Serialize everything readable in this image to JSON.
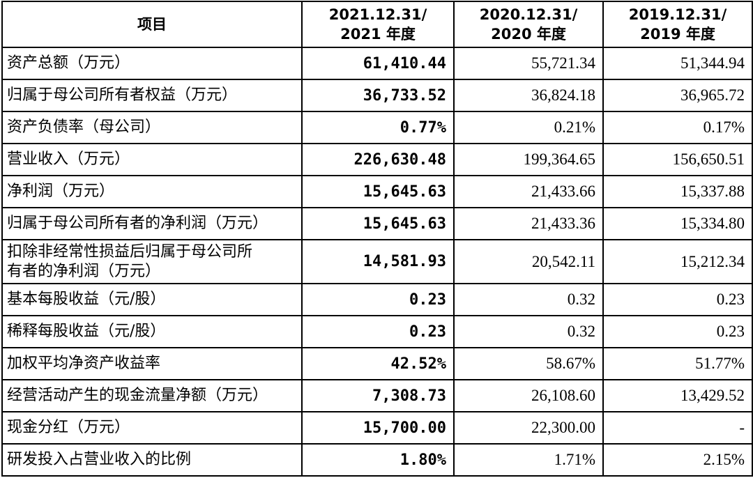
{
  "header": {
    "item": "项目",
    "col_2021": [
      "2021.12.31/",
      "2021 年度"
    ],
    "col_2020": [
      "2020.12.31/",
      "2020 年度"
    ],
    "col_2019": [
      "2019.12.31/",
      "2019 年度"
    ]
  },
  "rows": [
    {
      "label": "资产总额（万元）",
      "v2021": "61,410.44",
      "v2020": "55,721.34",
      "v2019": "51,344.94"
    },
    {
      "label": "归属于母公司所有者权益（万元）",
      "v2021": "36,733.52",
      "v2020": "36,824.18",
      "v2019": "36,965.72"
    },
    {
      "label": "资产负债率（母公司）",
      "v2021": "0.77%",
      "v2020": "0.21%",
      "v2019": "0.17%"
    },
    {
      "label": "营业收入（万元）",
      "v2021": "226,630.48",
      "v2020": "199,364.65",
      "v2019": "156,650.51"
    },
    {
      "label": "净利润（万元）",
      "v2021": "15,645.63",
      "v2020": "21,433.66",
      "v2019": "15,337.88"
    },
    {
      "label": "归属于母公司所有者的净利润（万元）",
      "v2021": "15,645.63",
      "v2020": "21,433.36",
      "v2019": "15,334.80"
    },
    {
      "label": "扣除非经常性损益后归属于母公司所有者的净利润（万元）",
      "label_lines": [
        "扣除非经常性损益后归属于母公司所",
        "有者的净利润（万元）"
      ],
      "v2021": "14,581.93",
      "v2020": "20,542.11",
      "v2019": "15,212.34"
    },
    {
      "label": "基本每股收益（元/股）",
      "v2021": "0.23",
      "v2020": "0.32",
      "v2019": "0.23"
    },
    {
      "label": "稀释每股收益（元/股）",
      "v2021": "0.23",
      "v2020": "0.32",
      "v2019": "0.23"
    },
    {
      "label": "加权平均净资产收益率",
      "v2021": "42.52%",
      "v2020": "58.67%",
      "v2019": "51.77%"
    },
    {
      "label": "经营活动产生的现金流量净额（万元）",
      "v2021": "7,308.73",
      "v2020": "26,108.60",
      "v2019": "13,429.52"
    },
    {
      "label": "现金分红（万元）",
      "v2021": "15,700.00",
      "v2020": "22,300.00",
      "v2019": "-"
    },
    {
      "label": "研发投入占营业收入的比例",
      "v2021": "1.80%",
      "v2020": "1.71%",
      "v2019": "2.15%"
    }
  ]
}
